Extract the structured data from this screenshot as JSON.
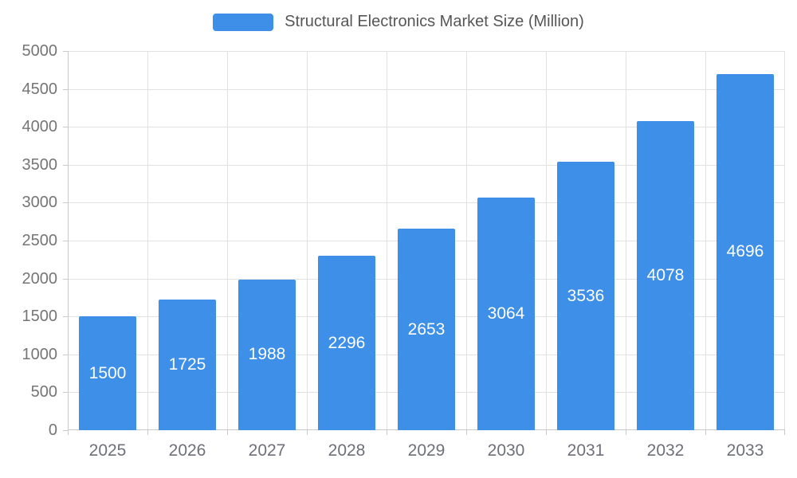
{
  "chart_data": {
    "type": "bar",
    "title": "Structural Electronics Market Size (Million)",
    "categories": [
      "2025",
      "2026",
      "2027",
      "2028",
      "2029",
      "2030",
      "2031",
      "2032",
      "2033"
    ],
    "values": [
      1500,
      1725,
      1988,
      2296,
      2653,
      3064,
      3536,
      4078,
      4696
    ],
    "xlabel": "",
    "ylabel": "",
    "ylim": [
      0,
      5000
    ],
    "ytick_step": 500,
    "grid": true,
    "legend_position": "top-center",
    "bar_labels_visible": true,
    "colors": {
      "bar": "#3D8FE8",
      "bar_label_text": "#FFFFFF",
      "axis_text": "#757575",
      "x_axis_text": "#6E7079",
      "gridline": "#E2E2E2",
      "axis_line": "#C9C9C9",
      "legend_text": "#565656",
      "background": "#FFFFFF"
    }
  }
}
